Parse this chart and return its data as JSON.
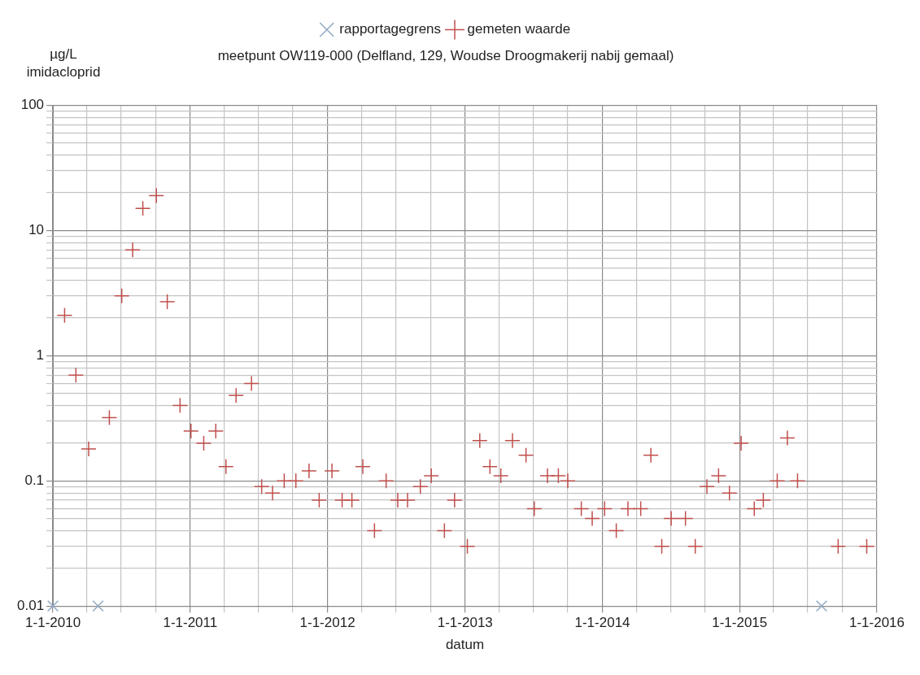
{
  "chart_data": {
    "type": "scatter",
    "subtitle": "meetpunt OW119-000 (Delfland, 129, Woudse Droogmakerij nabij gemaal)",
    "ylabel": "µg/L imidacloprid",
    "xlabel": "datum",
    "legend": "top",
    "log": "y",
    "grid": true,
    "xlim": [
      "2010-01-01",
      "2016-01-01"
    ],
    "xticks": [
      {
        "value": "2010-01-01",
        "label": "1-1-2010"
      },
      {
        "value": "2010-04-01",
        "label": null
      },
      {
        "value": "2010-07-01",
        "label": null
      },
      {
        "value": "2010-10-01",
        "label": null
      },
      {
        "value": "2011-01-01",
        "label": "1-1-2011"
      },
      {
        "value": "2011-04-01",
        "label": null
      },
      {
        "value": "2011-07-01",
        "label": null
      },
      {
        "value": "2011-10-01",
        "label": null
      },
      {
        "value": "2012-01-01",
        "label": "1-1-2012"
      },
      {
        "value": "2012-04-01",
        "label": null
      },
      {
        "value": "2012-07-01",
        "label": null
      },
      {
        "value": "2012-10-01",
        "label": null
      },
      {
        "value": "2013-01-01",
        "label": "1-1-2013"
      },
      {
        "value": "2013-04-01",
        "label": null
      },
      {
        "value": "2013-07-01",
        "label": null
      },
      {
        "value": "2013-10-01",
        "label": null
      },
      {
        "value": "2014-01-01",
        "label": "1-1-2014"
      },
      {
        "value": "2014-04-01",
        "label": null
      },
      {
        "value": "2014-07-01",
        "label": null
      },
      {
        "value": "2014-10-01",
        "label": null
      },
      {
        "value": "2015-01-01",
        "label": "1-1-2015"
      },
      {
        "value": "2015-04-01",
        "label": null
      },
      {
        "value": "2015-07-01",
        "label": null
      },
      {
        "value": "2015-10-01",
        "label": null
      },
      {
        "value": "2016-01-01",
        "label": "1-1-2016"
      }
    ],
    "ylim": [
      0.01,
      100
    ],
    "yticks": [
      0.01,
      {
        "value": 0.02,
        "label": null
      },
      {
        "value": 0.03,
        "label": null
      },
      {
        "value": 0.04,
        "label": null
      },
      {
        "value": 0.05,
        "label": null
      },
      {
        "value": 0.06,
        "label": null
      },
      {
        "value": 0.07,
        "label": null
      },
      {
        "value": 0.08,
        "label": null
      },
      {
        "value": 0.09,
        "label": null
      },
      0.1,
      {
        "value": 0.2,
        "label": null
      },
      {
        "value": 0.3,
        "label": null
      },
      {
        "value": 0.4,
        "label": null
      },
      {
        "value": 0.5,
        "label": null
      },
      {
        "value": 0.6,
        "label": null
      },
      {
        "value": 0.7,
        "label": null
      },
      {
        "value": 0.8,
        "label": null
      },
      {
        "value": 0.9,
        "label": null
      },
      1,
      {
        "value": 2,
        "label": null
      },
      {
        "value": 3,
        "label": null
      },
      {
        "value": 4,
        "label": null
      },
      {
        "value": 5,
        "label": null
      },
      {
        "value": 6,
        "label": null
      },
      {
        "value": 7,
        "label": null
      },
      {
        "value": 8,
        "label": null
      },
      {
        "value": 9,
        "label": null
      },
      10,
      {
        "value": 20,
        "label": null
      },
      {
        "value": 30,
        "label": null
      },
      {
        "value": 40,
        "label": null
      },
      {
        "value": 50,
        "label": null
      },
      {
        "value": 60,
        "label": null
      },
      {
        "value": 70,
        "label": null
      },
      {
        "value": 80,
        "label": null
      },
      {
        "value": 90,
        "label": null
      },
      100
    ],
    "series": [
      {
        "name": "rapportagegrens",
        "color": "#8fa9c4",
        "marker": "x",
        "x": [
          "2010-01-01",
          "2010-05-01",
          "2015-08-07"
        ],
        "values": [
          0.01,
          0.01,
          0.01
        ]
      },
      {
        "name": "gemeten waarde",
        "color": "#c0504d",
        "marker": "cross",
        "x": [
          "2010-02-01",
          "2010-03-03",
          "2010-04-06",
          "2010-05-31",
          "2010-07-03",
          "2010-08-01",
          "2010-08-28",
          "2010-10-03",
          "2010-11-01",
          "2010-12-05",
          "2011-01-03",
          "2011-02-06",
          "2011-03-10",
          "2011-04-06",
          "2011-05-03",
          "2011-06-13",
          "2011-07-10",
          "2011-08-08",
          "2011-09-08",
          "2011-10-09",
          "2011-11-13",
          "2011-12-10",
          "2012-01-13",
          "2012-02-09",
          "2012-03-06",
          "2012-04-04",
          "2012-05-05",
          "2012-06-05",
          "2012-07-06",
          "2012-08-01",
          "2012-09-04",
          "2012-10-03",
          "2012-11-07",
          "2012-12-04",
          "2013-01-07",
          "2013-02-09",
          "2013-03-08",
          "2013-04-06",
          "2013-05-07",
          "2013-06-12",
          "2013-07-04",
          "2013-08-08",
          "2013-09-06",
          "2013-10-01",
          "2013-11-06",
          "2013-12-05",
          "2014-01-07",
          "2014-02-07",
          "2014-03-10",
          "2014-04-13",
          "2014-05-10",
          "2014-06-08",
          "2014-07-03",
          "2014-08-10",
          "2014-09-05",
          "2014-10-06",
          "2014-11-06",
          "2014-12-05",
          "2015-01-05",
          "2015-02-09",
          "2015-03-05",
          "2015-04-11",
          "2015-05-08",
          "2015-06-04",
          "2015-09-20",
          "2015-12-05"
        ],
        "values": [
          2.1,
          0.7,
          0.18,
          0.32,
          3,
          7,
          15,
          19,
          2.7,
          0.4,
          0.25,
          0.2,
          0.25,
          0.13,
          0.48,
          0.6,
          0.09,
          0.08,
          0.1,
          0.1,
          0.12,
          0.07,
          0.12,
          0.07,
          0.07,
          0.13,
          0.04,
          0.1,
          0.07,
          0.07,
          0.09,
          0.11,
          0.04,
          0.07,
          0.03,
          0.21,
          0.13,
          0.11,
          0.21,
          0.16,
          0.06,
          0.11,
          0.11,
          0.1,
          0.06,
          0.05,
          0.06,
          0.04,
          0.06,
          0.06,
          0.16,
          0.03,
          0.05,
          0.05,
          0.03,
          0.09,
          0.11,
          0.08,
          0.2,
          0.06,
          0.07,
          0.1,
          0.22,
          0.1,
          0.03,
          0.03
        ]
      }
    ]
  }
}
